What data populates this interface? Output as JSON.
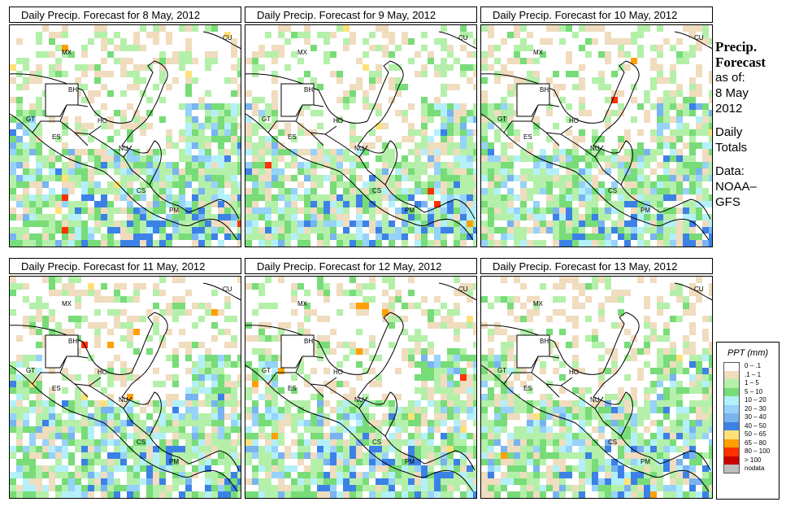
{
  "panels": [
    {
      "title": "Daily Precip. Forecast for  8 May, 2012"
    },
    {
      "title": "Daily Precip. Forecast for  9 May, 2012"
    },
    {
      "title": "Daily Precip. Forecast for  10 May, 2012"
    },
    {
      "title": "Daily Precip. Forecast for  11 May, 2012"
    },
    {
      "title": "Daily Precip. Forecast for  12 May, 2012"
    },
    {
      "title": "Daily Precip. Forecast for  13 May, 2012"
    }
  ],
  "map_labels": [
    "MX",
    "CU",
    "BH",
    "GT",
    "HO",
    "ES",
    "NU",
    "CS",
    "PM"
  ],
  "sidebar": {
    "heading_line1": "Precip.",
    "heading_line2": "Forecast",
    "as_of": "as of:",
    "date_line1": "8 May",
    "date_line2": "2012",
    "totals_line1": "Daily",
    "totals_line2": "Totals",
    "data_line1": "Data:",
    "data_line2": "NOAA–",
    "data_line3": "GFS"
  },
  "legend": {
    "title": "PPT (mm)",
    "items": [
      {
        "label": "0 – .1",
        "color": "#ffffff"
      },
      {
        "label": ".1 – 1",
        "color": "#f0dcbe"
      },
      {
        "label": "1 – 5",
        "color": "#b4f0aa"
      },
      {
        "label": "5 – 10",
        "color": "#78dc78"
      },
      {
        "label": "10 – 20",
        "color": "#b4f0fa"
      },
      {
        "label": "20 – 30",
        "color": "#96d2fa"
      },
      {
        "label": "30 – 40",
        "color": "#78b4f0"
      },
      {
        "label": "40 – 50",
        "color": "#3c82e6"
      },
      {
        "label": "50 – 65",
        "color": "#ffe178"
      },
      {
        "label": "65 – 80",
        "color": "#ffa000"
      },
      {
        "label": "80 – 100",
        "color": "#ff3200"
      },
      {
        "label": "> 100",
        "color": "#c80000"
      },
      {
        "label": "nodata",
        "color": "#bebebe"
      }
    ]
  }
}
